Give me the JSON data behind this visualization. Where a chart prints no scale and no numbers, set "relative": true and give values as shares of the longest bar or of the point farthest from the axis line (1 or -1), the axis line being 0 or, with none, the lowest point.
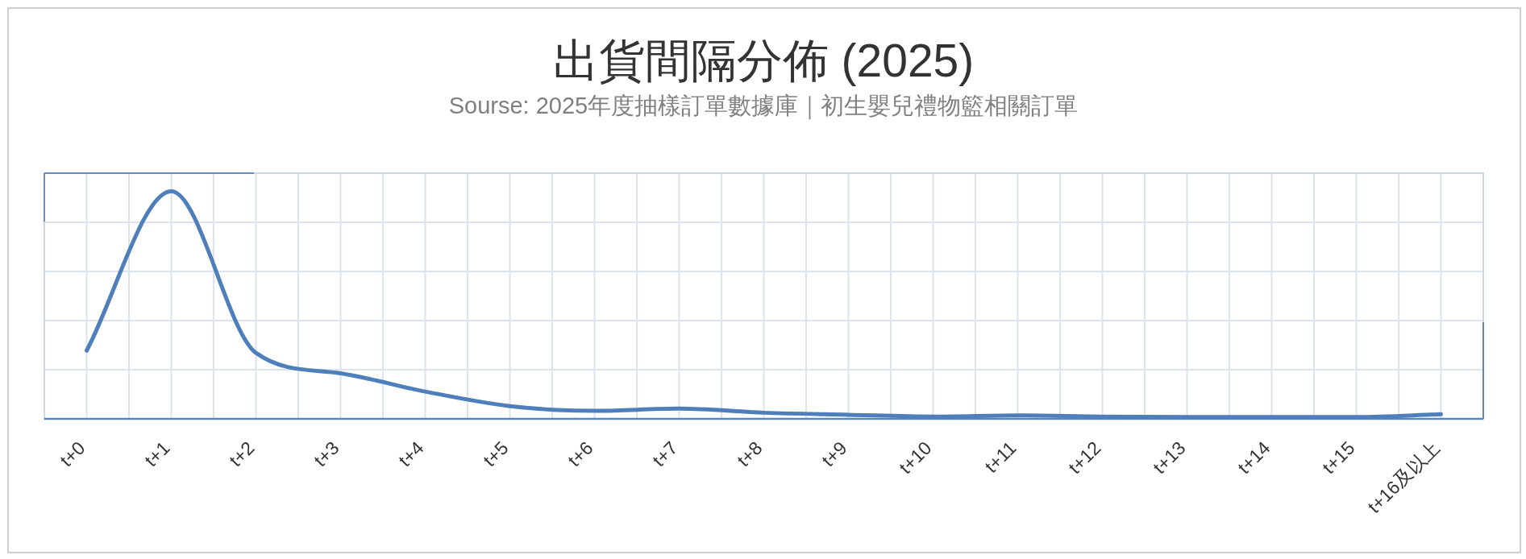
{
  "chart_data": {
    "type": "line",
    "title": "出貨間隔分佈 (2025)",
    "subtitle": "Sourse: 2025年度抽樣訂單數據庫｜初生嬰兒禮物籃相關訂單",
    "categories": [
      "t+0",
      "t+1",
      "t+2",
      "t+3",
      "t+4",
      "t+5",
      "t+6",
      "t+7",
      "t+8",
      "t+9",
      "t+10",
      "t+11",
      "t+12",
      "t+13",
      "t+14",
      "t+15",
      "t+16及以上"
    ],
    "relative": true,
    "series": [
      {
        "color": "#4e7fbb",
        "values": [
          0.3,
          1,
          0.29,
          0.2,
          0.12,
          0.056,
          0.035,
          0.045,
          0.027,
          0.018,
          0.01,
          0.015,
          0.01,
          0.008,
          0.008,
          0.008,
          0.02
        ]
      }
    ],
    "grid": true,
    "tick_labels": "x"
  }
}
